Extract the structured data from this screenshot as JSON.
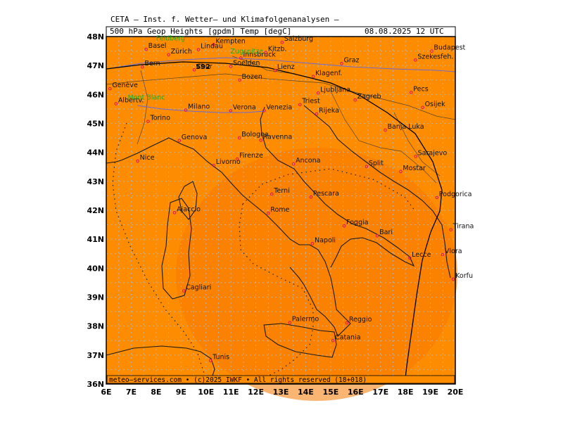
{
  "header": {
    "title": "CETA – Inst. f. Wetter– und Klimafolgenanalysen –",
    "product_label": "500 hPa Geop Heights [gpdm] Temp [degC]",
    "valid_time": "08.08.2025 12 UTC"
  },
  "footer": {
    "copyright": "meteo–services.com • (c)2025 IWKF • All rights reserved (18+018)"
  },
  "map": {
    "fill_color": "#ff8c00",
    "border_color": "#000000",
    "lat_ticks": [
      "48N",
      "47N",
      "46N",
      "45N",
      "44N",
      "43N",
      "42N",
      "41N",
      "40N",
      "39N",
      "38N",
      "37N",
      "36N"
    ],
    "lon_ticks": [
      "6E",
      "7E",
      "8E",
      "9E",
      "10E",
      "11E",
      "12E",
      "13E",
      "14E",
      "15E",
      "16E",
      "17E",
      "18E",
      "19E",
      "20E"
    ],
    "contour_label": "592",
    "cities": [
      {
        "name": "Basel"
      },
      {
        "name": "Zürich"
      },
      {
        "name": "Kempten"
      },
      {
        "name": "Lindau"
      },
      {
        "name": "Salzburg"
      },
      {
        "name": "Kitzb."
      },
      {
        "name": "Budapest"
      },
      {
        "name": "Szekesfeh."
      },
      {
        "name": "Bern"
      },
      {
        "name": "Innsbruck"
      },
      {
        "name": "Graz"
      },
      {
        "name": "Chur"
      },
      {
        "name": "Soelden"
      },
      {
        "name": "Lienz"
      },
      {
        "name": "Klagenf."
      },
      {
        "name": "Genève"
      },
      {
        "name": "Bozen"
      },
      {
        "name": "Ljubljana"
      },
      {
        "name": "Pecs"
      },
      {
        "name": "Albertv."
      },
      {
        "name": "Venezia"
      },
      {
        "name": "Triest"
      },
      {
        "name": "Zagreb"
      },
      {
        "name": "Milano"
      },
      {
        "name": "Verona"
      },
      {
        "name": "Rijeka"
      },
      {
        "name": "Osijek"
      },
      {
        "name": "Torino"
      },
      {
        "name": "Bologna"
      },
      {
        "name": "Banja Luka"
      },
      {
        "name": "Genova"
      },
      {
        "name": "Ravenna"
      },
      {
        "name": "Nice"
      },
      {
        "name": "Firenze"
      },
      {
        "name": "Split"
      },
      {
        "name": "Sarajevo"
      },
      {
        "name": "Livorno"
      },
      {
        "name": "Ancona"
      },
      {
        "name": "Mostar"
      },
      {
        "name": "Terni"
      },
      {
        "name": "Podgorica"
      },
      {
        "name": "Pescara"
      },
      {
        "name": "Ajaccio"
      },
      {
        "name": "Rome"
      },
      {
        "name": "Tirana"
      },
      {
        "name": "Foggia"
      },
      {
        "name": "Bari"
      },
      {
        "name": "Napoli"
      },
      {
        "name": "Lecce"
      },
      {
        "name": "Vlora"
      },
      {
        "name": "Korfu"
      },
      {
        "name": "Cagliari"
      },
      {
        "name": "Reggio"
      },
      {
        "name": "Palermo"
      },
      {
        "name": "Catania"
      },
      {
        "name": "Tunis"
      }
    ],
    "green_labels": [
      {
        "name": "Feldberg"
      },
      {
        "name": "Zugspitze"
      },
      {
        "name": "Mont Blanc"
      }
    ]
  }
}
